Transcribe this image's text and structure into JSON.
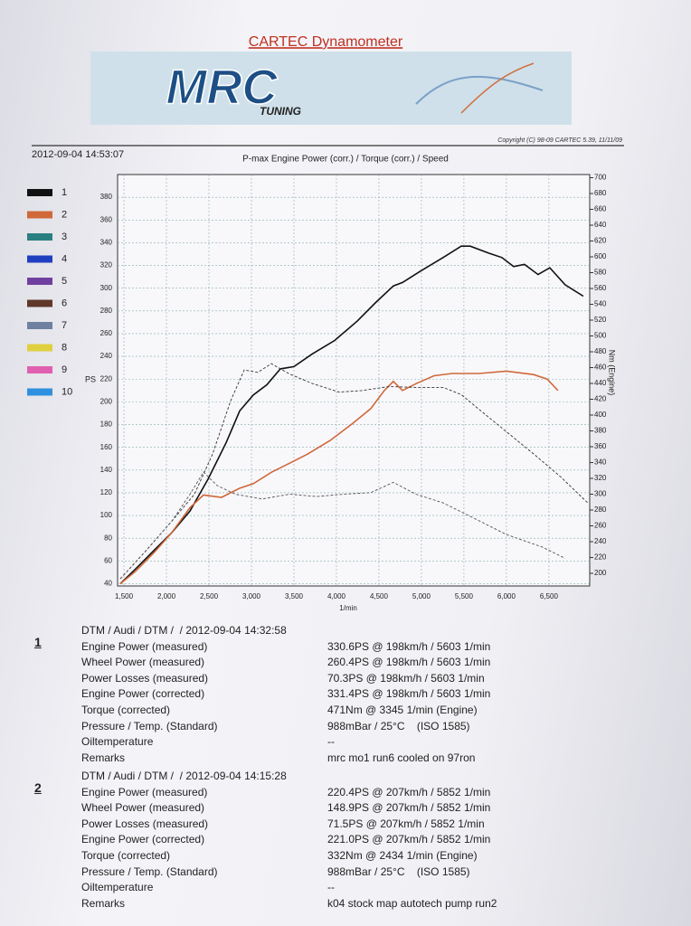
{
  "header": {
    "title": "CARTEC Dynamometer",
    "logo": "MRC",
    "logo_sub": "TUNING",
    "timestamp": "2012-09-04 14:53:07",
    "copyright": "Copyright (C) 98-09 CARTEC 5.39, 11/11/09"
  },
  "chart_data": {
    "type": "line",
    "title": "P-max Engine Power (corr.) / Torque (corr.) / Speed",
    "x_label": "1/min",
    "y_label": "PS",
    "y2_label": "Nm (Engine)",
    "xlim": [
      1425,
      6980
    ],
    "ylim": [
      38,
      400
    ],
    "y2lim": [
      184,
      704
    ],
    "xticks": [
      {
        "value": 1500,
        "label": "1,500"
      },
      {
        "value": 2000,
        "label": "2,000"
      },
      {
        "value": 2500,
        "label": "2,500"
      },
      {
        "value": 3000,
        "label": "3,000"
      },
      {
        "value": 3500,
        "label": "3,500"
      },
      {
        "value": 4000,
        "label": "4,000"
      },
      {
        "value": 4500,
        "label": "4,500"
      },
      {
        "value": 5000,
        "label": "5,000"
      },
      {
        "value": 5500,
        "label": "5,500"
      },
      {
        "value": 6000,
        "label": "6,000"
      },
      {
        "value": 6500,
        "label": "6,500"
      }
    ],
    "yticks": [
      40,
      60,
      80,
      100,
      120,
      140,
      160,
      180,
      200,
      220,
      240,
      260,
      280,
      300,
      320,
      340,
      360,
      380
    ],
    "y2ticks": [
      200,
      220,
      240,
      260,
      280,
      300,
      320,
      340,
      360,
      380,
      400,
      420,
      440,
      460,
      480,
      500,
      520,
      540,
      560,
      580,
      600,
      620,
      640,
      660,
      680,
      700
    ],
    "grid": true,
    "legend": [
      {
        "label": "1",
        "color": "#111111"
      },
      {
        "label": "2",
        "color": "#d0683a"
      },
      {
        "label": "3",
        "color": "#2a8080"
      },
      {
        "label": "4",
        "color": "#2040c0"
      },
      {
        "label": "5",
        "color": "#7040a0"
      },
      {
        "label": "6",
        "color": "#603828"
      },
      {
        "label": "7",
        "color": "#7080a0"
      },
      {
        "label": "8",
        "color": "#e0d040"
      },
      {
        "label": "9",
        "color": "#e060b0"
      },
      {
        "label": "10",
        "color": "#3090e0"
      }
    ],
    "series": [
      {
        "color": "#111111",
        "dash": false,
        "axis": "y",
        "x": [
          1457,
          1638,
          1851,
          2064,
          2277,
          2489,
          2702,
          2862,
          3021,
          3181,
          3340,
          3500,
          3713,
          3979,
          4245,
          4457,
          4670,
          4777,
          4989,
          5255,
          5468,
          5574,
          5787,
          5947,
          6085,
          6213,
          6372,
          6511,
          6691,
          6904
        ],
        "values": [
          40,
          53,
          69,
          85,
          104,
          132,
          164,
          192,
          206,
          215,
          229,
          231,
          242,
          254,
          271,
          287,
          302,
          305,
          315,
          327,
          337,
          337,
          331,
          327,
          319,
          321,
          312,
          318,
          303,
          293
        ]
      },
      {
        "color": "#d0683a",
        "dash": false,
        "axis": "y",
        "x": [
          1457,
          1638,
          1851,
          2064,
          2277,
          2436,
          2649,
          2862,
          3021,
          3234,
          3447,
          3660,
          3926,
          4191,
          4404,
          4564,
          4670,
          4777,
          4936,
          5149,
          5362,
          5681,
          6000,
          6319,
          6479,
          6606
        ],
        "values": [
          40,
          51,
          67,
          85,
          107,
          118,
          116,
          124,
          128,
          138,
          146,
          154,
          166,
          181,
          194,
          210,
          218,
          210,
          216,
          223,
          225,
          225,
          227,
          224,
          220,
          210
        ]
      },
      {
        "color": "#333333",
        "dash": true,
        "axis": "y2",
        "x": [
          1457,
          1745,
          2064,
          2330,
          2543,
          2755,
          2915,
          3074,
          3234,
          3447,
          3713,
          4032,
          4298,
          4617,
          4936,
          5255,
          5468,
          5681,
          6000,
          6319,
          6638,
          6957
        ],
        "values": [
          193,
          227,
          266,
          300,
          351,
          418,
          457,
          454,
          465,
          452,
          440,
          429,
          431,
          436,
          435,
          435,
          426,
          407,
          379,
          351,
          322,
          289
        ]
      },
      {
        "color": "#555555",
        "dash": true,
        "axis": "y2",
        "x": [
          1457,
          1745,
          2064,
          2277,
          2436,
          2596,
          2809,
          3128,
          3447,
          3766,
          4085,
          4404,
          4670,
          4936,
          5255,
          5574,
          6000,
          6426,
          6691
        ],
        "values": [
          193,
          227,
          266,
          300,
          328,
          311,
          300,
          294,
          300,
          297,
          300,
          302,
          315,
          300,
          289,
          272,
          249,
          233,
          219
        ]
      }
    ]
  },
  "runs": [
    {
      "number": "1",
      "header": "DTM / Audi / DTM /  / 2012-09-04 14:32:58",
      "rows": [
        [
          "Engine Power (measured)",
          "330.6PS @ 198km/h / 5603 1/min"
        ],
        [
          "Wheel Power (measured)",
          "260.4PS @ 198km/h / 5603 1/min"
        ],
        [
          "Power Losses (measured)",
          "70.3PS @ 198km/h / 5603 1/min"
        ],
        [
          "Engine Power (corrected)",
          "331.4PS @ 198km/h / 5603 1/min"
        ],
        [
          "Torque (corrected)",
          "471Nm @ 3345 1/min (Engine)"
        ],
        [
          "Pressure / Temp. (Standard)",
          "988mBar / 25°C    (ISO 1585)"
        ],
        [
          "Oiltemperature",
          "--"
        ],
        [
          "Remarks",
          "mrc mo1 run6 cooled on 97ron"
        ]
      ]
    },
    {
      "number": "2",
      "header": "DTM / Audi / DTM /  / 2012-09-04 14:15:28",
      "rows": [
        [
          "Engine Power (measured)",
          "220.4PS @ 207km/h / 5852 1/min"
        ],
        [
          "Wheel Power (measured)",
          "148.9PS @ 207km/h / 5852 1/min"
        ],
        [
          "Power Losses (measured)",
          "71.5PS @ 207km/h / 5852 1/min"
        ],
        [
          "Engine Power (corrected)",
          "221.0PS @ 207km/h / 5852 1/min"
        ],
        [
          "Torque (corrected)",
          "332Nm @ 2434 1/min (Engine)"
        ],
        [
          "Pressure / Temp. (Standard)",
          "988mBar / 25°C    (ISO 1585)"
        ],
        [
          "Oiltemperature",
          "--"
        ],
        [
          "Remarks",
          "k04 stock map autotech pump run2"
        ]
      ]
    }
  ]
}
